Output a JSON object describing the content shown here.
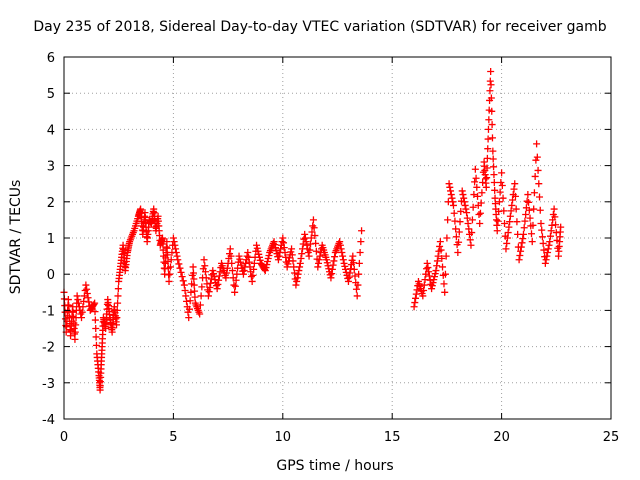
{
  "chart_data": {
    "type": "scatter",
    "title": "Day 235 of 2018, Sidereal Day-to-day VTEC variation (SDTVAR) for receiver gamb",
    "xlabel": "GPS time / hours",
    "ylabel": "SDTVAR / TECUs",
    "xlim": [
      0,
      25
    ],
    "ylim": [
      -4,
      6
    ],
    "xticks": [
      0,
      5,
      10,
      15,
      20,
      25
    ],
    "yticks": [
      -4,
      -3,
      -2,
      -1,
      0,
      1,
      2,
      3,
      4,
      5,
      6
    ],
    "grid": true,
    "marker": "+",
    "color": "#ff0000",
    "series": [
      {
        "name": "SDTVAR",
        "x": [
          0.0,
          0.1,
          0.2,
          0.3,
          0.4,
          0.5,
          0.6,
          0.8,
          1.0,
          1.2,
          1.4,
          1.5,
          1.6,
          1.65,
          1.7,
          1.75,
          1.8,
          1.9,
          2.0,
          2.1,
          2.2,
          2.3,
          2.4,
          2.5,
          2.6,
          2.7,
          2.8,
          2.9,
          3.0,
          3.2,
          3.4,
          3.5,
          3.6,
          3.7,
          3.8,
          3.9,
          4.0,
          4.1,
          4.2,
          4.3,
          4.4,
          4.5,
          4.6,
          4.7,
          4.8,
          5.0,
          5.2,
          5.5,
          5.7,
          5.9,
          6.0,
          6.2,
          6.4,
          6.6,
          6.8,
          7.0,
          7.2,
          7.4,
          7.6,
          7.8,
          8.0,
          8.2,
          8.4,
          8.6,
          8.8,
          9.0,
          9.2,
          9.4,
          9.6,
          9.8,
          10.0,
          10.2,
          10.4,
          10.6,
          10.8,
          11.0,
          11.2,
          11.4,
          11.6,
          11.8,
          12.0,
          12.2,
          12.4,
          12.6,
          12.8,
          13.0,
          13.2,
          13.4,
          13.6,
          16.0,
          16.2,
          16.4,
          16.6,
          16.8,
          17.0,
          17.2,
          17.4,
          17.6,
          17.8,
          18.0,
          18.2,
          18.4,
          18.6,
          18.8,
          19.0,
          19.2,
          19.3,
          19.4,
          19.5,
          19.6,
          19.7,
          19.8,
          20.0,
          20.2,
          20.4,
          20.6,
          20.8,
          21.0,
          21.2,
          21.4,
          21.6,
          21.8,
          22.0,
          22.2,
          22.4,
          22.6,
          22.7
        ],
        "y": [
          -0.5,
          -1.6,
          -0.7,
          -1.7,
          -0.9,
          -1.8,
          -0.6,
          -1.2,
          -0.3,
          -1.0,
          -0.8,
          -2.2,
          -2.8,
          -3.2,
          -2.5,
          -1.9,
          -1.2,
          -1.5,
          -0.7,
          -1.2,
          -1.6,
          -0.9,
          -1.4,
          -0.2,
          0.3,
          0.8,
          0.1,
          0.6,
          0.9,
          1.2,
          1.6,
          1.8,
          1.1,
          1.7,
          0.9,
          1.5,
          1.4,
          1.8,
          1.2,
          1.6,
          0.8,
          1.0,
          0.0,
          0.9,
          -0.2,
          1.0,
          0.4,
          -0.3,
          -1.2,
          0.2,
          -0.8,
          -1.1,
          0.4,
          -0.6,
          0.1,
          -0.4,
          0.3,
          -0.1,
          0.7,
          -0.5,
          0.5,
          0.0,
          0.6,
          -0.2,
          0.8,
          0.3,
          0.1,
          0.6,
          0.9,
          0.4,
          1.0,
          0.2,
          0.7,
          -0.3,
          0.3,
          1.1,
          0.5,
          1.5,
          0.2,
          0.8,
          0.4,
          -0.1,
          0.6,
          0.9,
          0.3,
          -0.2,
          0.5,
          -0.6,
          1.2,
          -0.9,
          -0.2,
          -0.6,
          0.3,
          -0.4,
          0.1,
          0.9,
          -0.5,
          2.5,
          1.9,
          0.6,
          2.3,
          1.7,
          0.8,
          2.9,
          1.4,
          3.1,
          2.4,
          4.0,
          5.6,
          3.4,
          2.1,
          1.2,
          2.8,
          0.7,
          1.6,
          2.5,
          0.4,
          1.1,
          2.2,
          0.9,
          3.6,
          1.4,
          0.3,
          0.9,
          1.8,
          0.5,
          1.3
        ]
      }
    ]
  }
}
